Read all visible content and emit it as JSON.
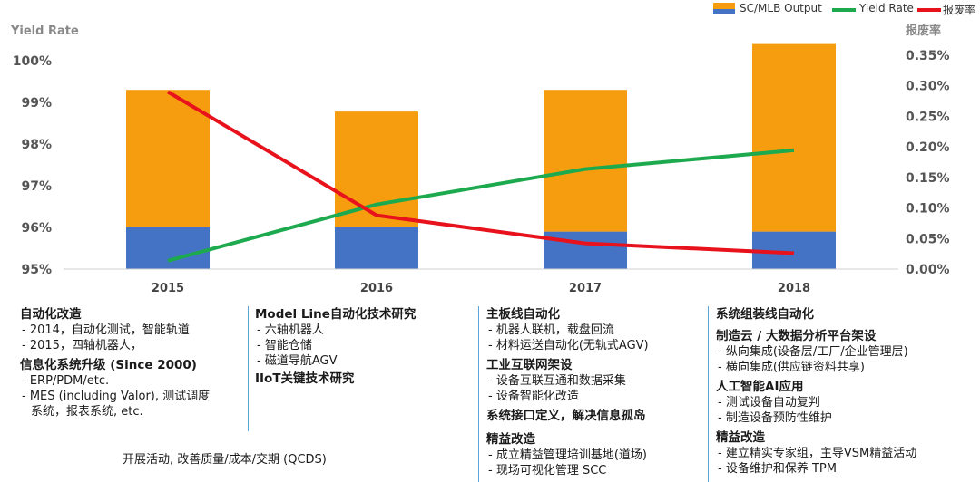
{
  "chart_data": {
    "type": "bar+line",
    "categories": [
      "2015",
      "2016",
      "2017",
      "2018"
    ],
    "series": [
      {
        "name": "SC/MLB Output",
        "kind": "stacked-bar",
        "segments": {
          "base": [
            0.0006,
            0.0006,
            0.0006,
            0.0006
          ],
          "top": [
            0.0028,
            0.0026,
            0.0028,
            0.0031
          ]
        }
      },
      {
        "name": "Yield Rate",
        "kind": "line",
        "axis": "left",
        "values": [
          95.2,
          96.55,
          97.4,
          97.85
        ],
        "color": "#1DAA4F"
      },
      {
        "name": "报废率",
        "kind": "line",
        "axis": "right",
        "values": [
          0.0029,
          0.00088,
          0.00042,
          0.00026
        ],
        "color": "#E8121C"
      }
    ],
    "bar_totals_left_axis": [
      99.3,
      98.78,
      99.3,
      100.4
    ],
    "bar_base_left_axis": [
      96.0,
      96.0,
      95.9,
      95.9
    ],
    "ylabel": "Yield Rate",
    "y2label": "报废率",
    "ylim": [
      95,
      100.5
    ],
    "y2lim": [
      0,
      0.00375
    ],
    "yticks": [
      "95%",
      "96%",
      "97%",
      "98%",
      "99%",
      "100%"
    ],
    "y2ticks": [
      "0.00%",
      "0.05%",
      "0.10%",
      "0.15%",
      "0.20%",
      "0.25%",
      "0.30%",
      "0.35%"
    ],
    "legend": [
      "SC/MLB Output",
      "Yield Rate",
      "报废率"
    ],
    "legend_position": "top-right",
    "colors": {
      "bar_top": "#F59D0E",
      "bar_base": "#4472C4",
      "yield": "#1DAA4F",
      "scrap": "#E8121C"
    }
  },
  "columns": [
    {
      "sections": [
        {
          "head": "自动化改造",
          "items": [
            "2014，自动化测试，智能轨道",
            "2015，四轴机器人，"
          ]
        },
        {
          "head": "信息化系统升级 (Since 2000)",
          "items": [
            "ERP/PDM/etc.",
            "MES (including Valor), 测试调度系统，报表系统, etc."
          ]
        }
      ]
    },
    {
      "sections": [
        {
          "head": "Model Line自动化技术研究",
          "items": [
            "六轴机器人",
            "智能仓储",
            "磁道导航AGV"
          ]
        },
        {
          "head": "IIoT关键技术研究",
          "items": []
        }
      ]
    },
    {
      "sections": [
        {
          "head": "主板线自动化",
          "items": [
            "机器人联机，载盘回流",
            "材料运送自动化(无轨式AGV)"
          ]
        },
        {
          "head": "工业互联网架设",
          "items": [
            "设备互联互通和数据采集",
            "设备智能化改造"
          ]
        },
        {
          "head": "系统接口定义，解决信息孤岛",
          "items": []
        },
        {
          "head": "精益改造",
          "items": [
            "成立精益管理培训基地(道场)",
            "现场可视化管理 SCC"
          ]
        }
      ]
    },
    {
      "sections": [
        {
          "head": "系统组装线自动化",
          "items": []
        },
        {
          "head": "制造云 / 大数据分析平台架设",
          "items": [
            "纵向集成(设备层/工厂/企业管理层)",
            "横向集成(供应链资料共享)"
          ]
        },
        {
          "head": "人工智能AI应用",
          "items": [
            "测试设备自动复判",
            "制造设备预防性维护"
          ]
        },
        {
          "head": "精益改造",
          "items": [
            "建立精实专家组，主导VSM精益活动",
            "设备维护和保养 TPM"
          ]
        }
      ]
    }
  ],
  "footer": "开展活动, 改善质量/成本/交期 (QCDS)"
}
